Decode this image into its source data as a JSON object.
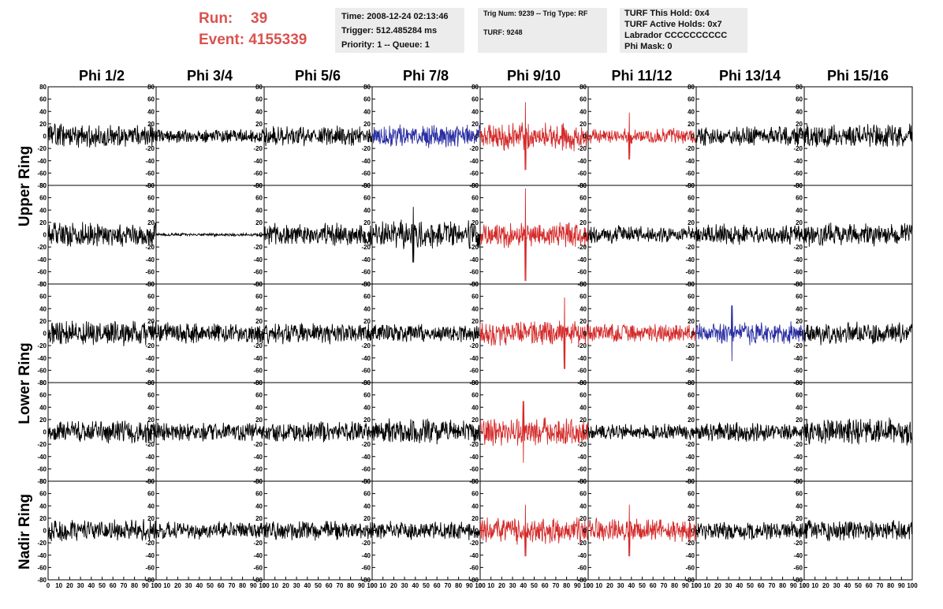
{
  "run_info": {
    "run_label": "Run:",
    "run_value": "39",
    "event_label": "Event:",
    "event_value": "4155339",
    "accent_color": "#d9534f"
  },
  "info_box_1": {
    "time": "Time: 2008-12-24 02:13:46",
    "trigger": "Trigger: 512.485284 ms",
    "priority": "Priority: 1 -- Queue: 1"
  },
  "info_box_2": {
    "trig": "Trig Num: 9239 -- Trig Type: RF",
    "turf": "TURF: 9248"
  },
  "info_box_3": {
    "this_hold": "TURF This Hold: 0x4",
    "active_holds": "TURF Active Holds: 0x7",
    "labrador": "Labrador CCCCCCCCCC",
    "phi_mask": "Phi Mask: 0"
  },
  "chart_data": {
    "type": "line",
    "columns": [
      "Phi 1/2",
      "Phi 3/4",
      "Phi 5/6",
      "Phi 7/8",
      "Phi 9/10",
      "Phi 11/12",
      "Phi 13/14",
      "Phi 15/16"
    ],
    "ring_labels": [
      "Upper Ring",
      "Lower Ring",
      "Nadir Ring"
    ],
    "rows_per_ring": [
      2,
      2,
      1
    ],
    "xlim": [
      0,
      100
    ],
    "ylim": [
      -80,
      80
    ],
    "x_ticks": [
      0,
      10,
      20,
      30,
      40,
      50,
      60,
      70,
      80,
      90,
      100
    ],
    "y_ticks": [
      -80,
      -60,
      -40,
      -20,
      0,
      20,
      40,
      60,
      80
    ],
    "colors": {
      "normal": "#000000",
      "triggered": "#d42a2a",
      "partial": "#2a2ea3"
    },
    "waveforms": [
      [
        {
          "color": "normal",
          "amp": 15,
          "seed": 11
        },
        {
          "color": "normal",
          "amp": 9,
          "seed": 12
        },
        {
          "color": "normal",
          "amp": 13,
          "seed": 13
        },
        {
          "color": "partial",
          "amp": 14,
          "seed": 14
        },
        {
          "color": "triggered",
          "amp": 18,
          "spike": 55,
          "spike_x": 42,
          "seed": 15
        },
        {
          "color": "triggered",
          "amp": 10,
          "spike": 38,
          "spike_x": 38,
          "seed": 16
        },
        {
          "color": "normal",
          "amp": 13,
          "seed": 17
        },
        {
          "color": "normal",
          "amp": 15,
          "seed": 18
        }
      ],
      [
        {
          "color": "normal",
          "amp": 17,
          "seed": 21
        },
        {
          "color": "normal",
          "amp": 2,
          "seed": 22
        },
        {
          "color": "normal",
          "amp": 14,
          "seed": 23
        },
        {
          "color": "normal",
          "amp": 18,
          "spike": 45,
          "spike_x": 38,
          "seed": 24
        },
        {
          "color": "triggered",
          "amp": 16,
          "spike": 75,
          "spike_x": 42,
          "seed": 25
        },
        {
          "color": "normal",
          "amp": 11,
          "seed": 26
        },
        {
          "color": "normal",
          "amp": 13,
          "seed": 27
        },
        {
          "color": "normal",
          "amp": 15,
          "seed": 28
        }
      ],
      [
        {
          "color": "normal",
          "amp": 16,
          "seed": 31
        },
        {
          "color": "normal",
          "amp": 13,
          "seed": 32
        },
        {
          "color": "normal",
          "amp": 13,
          "seed": 33
        },
        {
          "color": "normal",
          "amp": 11,
          "seed": 34
        },
        {
          "color": "triggered",
          "amp": 17,
          "spike": 58,
          "spike_x": 78,
          "seed": 35
        },
        {
          "color": "triggered",
          "amp": 12,
          "seed": 36
        },
        {
          "color": "partial",
          "amp": 14,
          "spike": 45,
          "spike_x": 33,
          "seed": 37
        },
        {
          "color": "normal",
          "amp": 14,
          "seed": 38
        }
      ],
      [
        {
          "color": "normal",
          "amp": 14,
          "seed": 41
        },
        {
          "color": "normal",
          "amp": 12,
          "seed": 42
        },
        {
          "color": "normal",
          "amp": 13,
          "seed": 43
        },
        {
          "color": "normal",
          "amp": 16,
          "seed": 44
        },
        {
          "color": "triggered",
          "amp": 18,
          "spike": 50,
          "spike_x": 40,
          "seed": 45
        },
        {
          "color": "normal",
          "amp": 10,
          "seed": 46
        },
        {
          "color": "normal",
          "amp": 12,
          "seed": 47
        },
        {
          "color": "normal",
          "amp": 17,
          "seed": 48
        }
      ],
      [
        {
          "color": "normal",
          "amp": 14,
          "seed": 51
        },
        {
          "color": "normal",
          "amp": 11,
          "seed": 52
        },
        {
          "color": "normal",
          "amp": 12,
          "seed": 53
        },
        {
          "color": "normal",
          "amp": 12,
          "seed": 54
        },
        {
          "color": "triggered",
          "amp": 17,
          "spike": 42,
          "spike_x": 42,
          "seed": 55
        },
        {
          "color": "triggered",
          "amp": 15,
          "spike": 42,
          "spike_x": 38,
          "seed": 56
        },
        {
          "color": "normal",
          "amp": 12,
          "seed": 57
        },
        {
          "color": "normal",
          "amp": 13,
          "seed": 58
        }
      ]
    ]
  }
}
